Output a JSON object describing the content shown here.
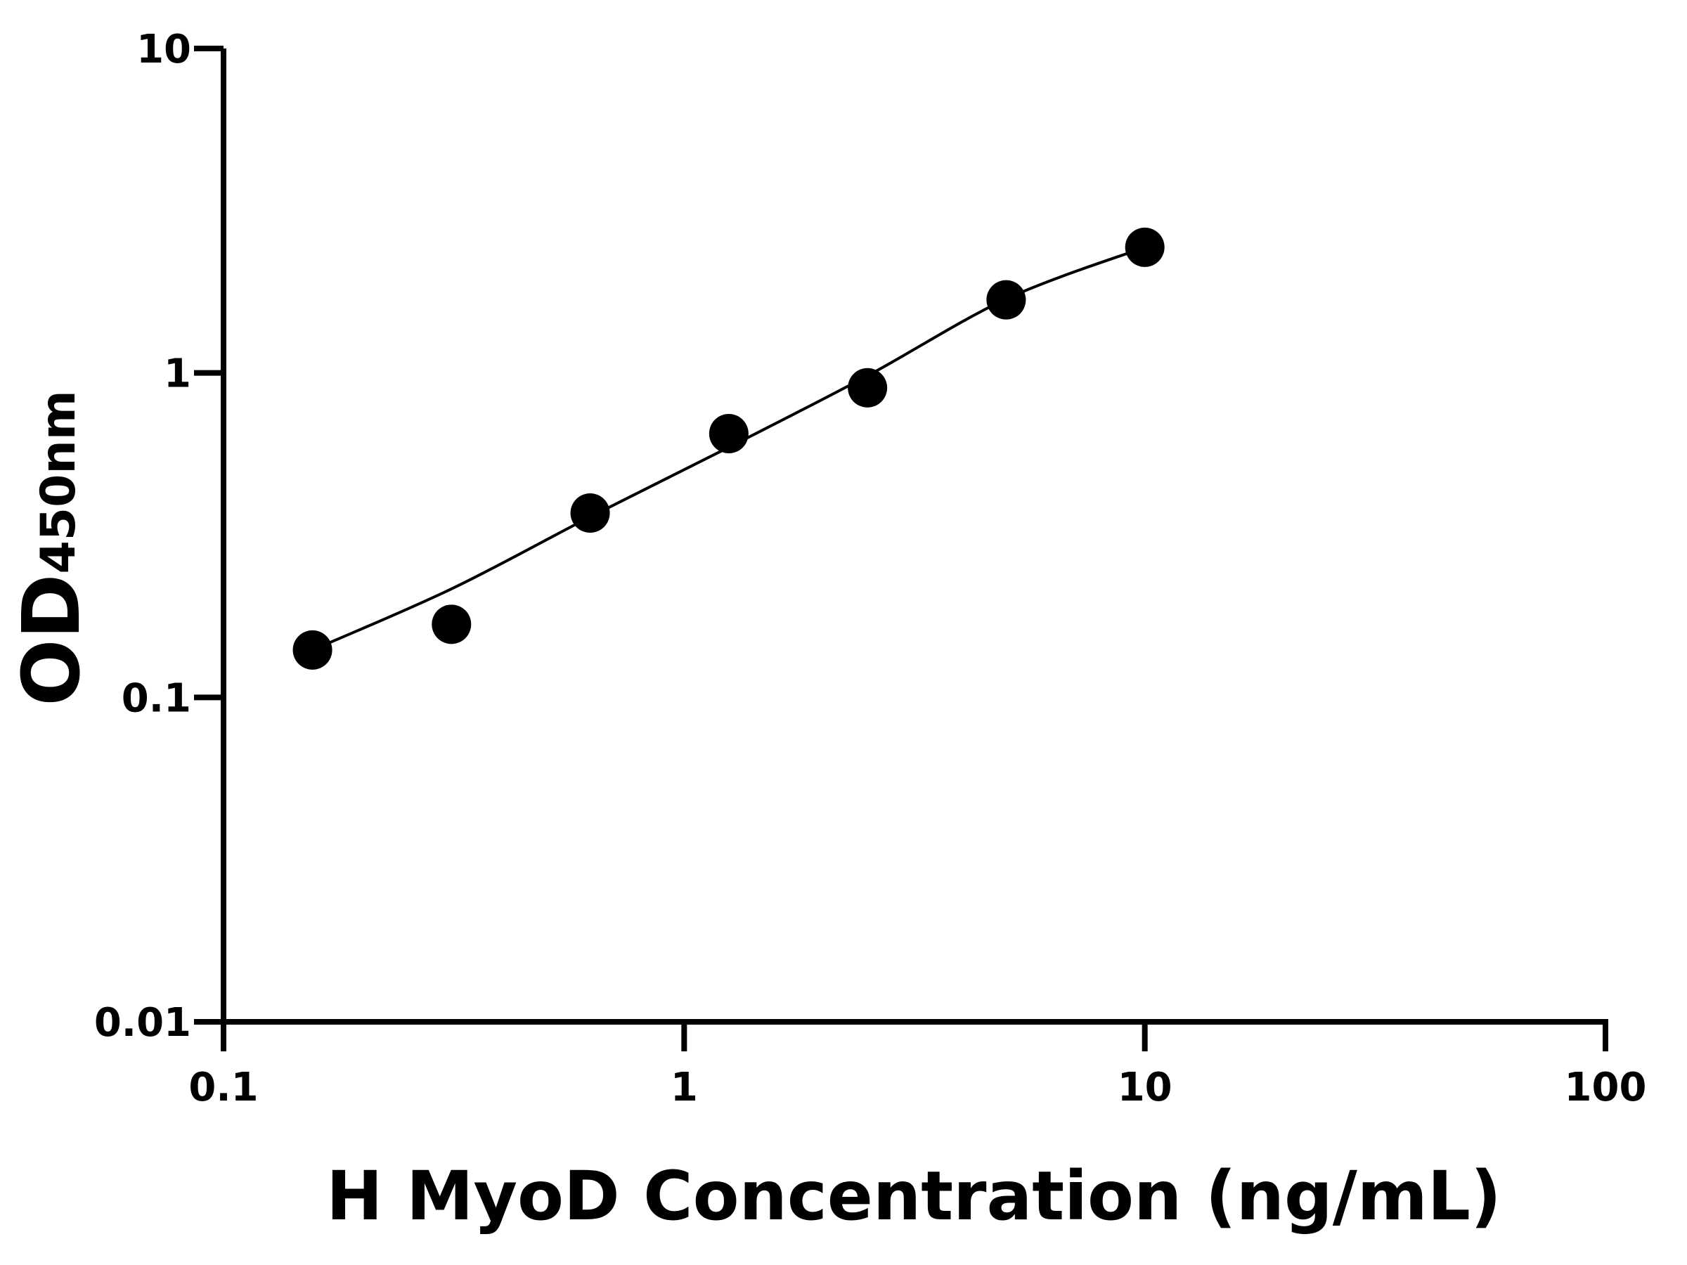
{
  "chart_data": {
    "type": "scatter",
    "x_label": "H MyoD Concentration (ng/mL)",
    "y_label": "OD",
    "y_label_subscript": "450nm",
    "log_x": true,
    "log_y": true,
    "xlim": [
      0.1,
      100
    ],
    "xticks": [
      0.1,
      1,
      10,
      100
    ],
    "ylim": [
      0.01,
      10
    ],
    "yticks": [
      0.01,
      0.1,
      1,
      10
    ],
    "color": "#000000",
    "x": [
      0.156,
      0.3125,
      0.625,
      1.25,
      2.5,
      5,
      10
    ],
    "values": [
      0.14,
      0.168,
      0.37,
      0.65,
      0.9,
      1.68,
      2.44
    ],
    "fit_x": [
      0.156,
      0.3125,
      0.625,
      1.25,
      2.5,
      5,
      10
    ],
    "fit_values": [
      0.14,
      0.216,
      0.36,
      0.59,
      0.98,
      1.69,
      2.44
    ]
  }
}
